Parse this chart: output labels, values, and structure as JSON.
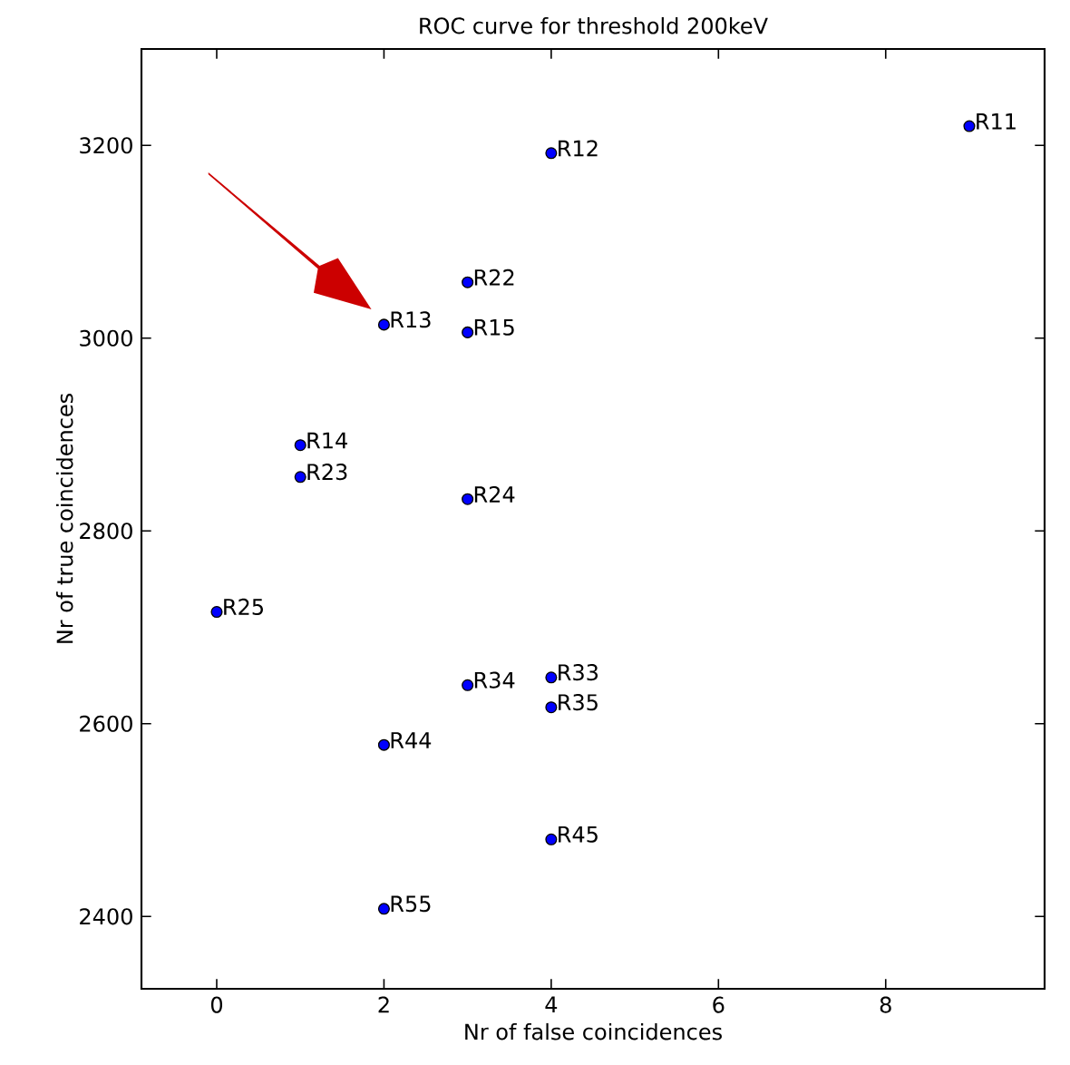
{
  "chart_data": {
    "type": "scatter",
    "title": "ROC curve for threshold 200keV",
    "xlabel": "Nr of false coincidences",
    "ylabel": "Nr of true coincidences",
    "series": [
      {
        "color": "#0000ff",
        "x": [
          9,
          4,
          3,
          2,
          3,
          1,
          1,
          3,
          0,
          4,
          3,
          4,
          2,
          4,
          2
        ],
        "values": [
          3220,
          3192,
          3058,
          3014,
          3006,
          2889,
          2856,
          2833,
          2716,
          2648,
          2640,
          2617,
          2578,
          2480,
          2408
        ]
      }
    ],
    "annotations": [
      {
        "text": "R11",
        "x": 9,
        "y": 3220
      },
      {
        "text": "R12",
        "x": 4,
        "y": 3192
      },
      {
        "text": "R22",
        "x": 3,
        "y": 3058
      },
      {
        "text": "R13",
        "x": 2,
        "y": 3014
      },
      {
        "text": "R15",
        "x": 3,
        "y": 3006
      },
      {
        "text": "R14",
        "x": 1,
        "y": 2889
      },
      {
        "text": "R23",
        "x": 1,
        "y": 2856
      },
      {
        "text": "R24",
        "x": 3,
        "y": 2833
      },
      {
        "text": "R25",
        "x": 0,
        "y": 2716
      },
      {
        "text": "R33",
        "x": 4,
        "y": 2648
      },
      {
        "text": "R34",
        "x": 3,
        "y": 2640
      },
      {
        "text": "R35",
        "x": 4,
        "y": 2617
      },
      {
        "text": "R44",
        "x": 2,
        "y": 2578
      },
      {
        "text": "R45",
        "x": 4,
        "y": 2480
      },
      {
        "text": "R55",
        "x": 2,
        "y": 2408
      }
    ],
    "xlim": [
      -0.9,
      9.9
    ],
    "ylim": [
      2325,
      3300
    ],
    "xticks": [
      0,
      2,
      4,
      6,
      8
    ],
    "yticks": [
      2400,
      2600,
      2800,
      3000,
      3200
    ],
    "marker": "circle"
  }
}
